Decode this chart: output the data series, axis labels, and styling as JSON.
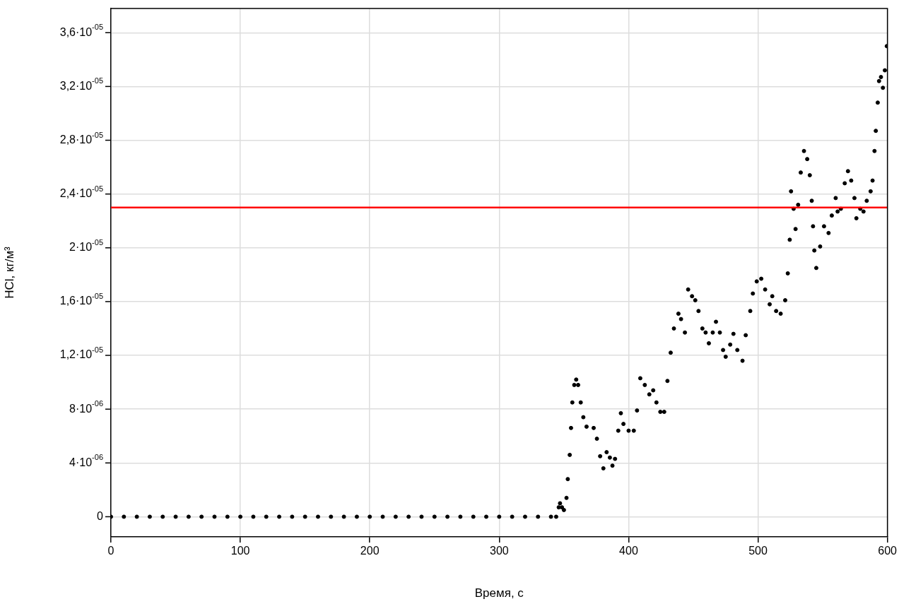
{
  "chart_data": {
    "type": "scatter",
    "xlabel": "Время, с",
    "ylabel": "HCl, кг/м³",
    "x": [
      0,
      10,
      20,
      30,
      40,
      50,
      60,
      70,
      80,
      90,
      100,
      110,
      120,
      130,
      140,
      150,
      160,
      170,
      180,
      190,
      200,
      210,
      220,
      230,
      240,
      250,
      260,
      270,
      280,
      290,
      300,
      310,
      320,
      330,
      340,
      344,
      346,
      347,
      348.5,
      350,
      352,
      353,
      354.5,
      355.5,
      356.5,
      358,
      359.5,
      361,
      363,
      365,
      367.5,
      373,
      375.5,
      378,
      380.5,
      383,
      385.5,
      387.5,
      389.5,
      392,
      394,
      396,
      400,
      404,
      406.5,
      409,
      412.5,
      416,
      419,
      421.5,
      424.5,
      427.5,
      430,
      432.5,
      435,
      438.5,
      440.5,
      443.5,
      446,
      449,
      451.5,
      454,
      457,
      459.5,
      462,
      465,
      467.5,
      470.5,
      473,
      475,
      478.5,
      481,
      484,
      488,
      490.5,
      494,
      496,
      499,
      502.5,
      505.5,
      509,
      511,
      514,
      517.5,
      521,
      523,
      524.5,
      525.5,
      527.5,
      529,
      531,
      533,
      535.5,
      538,
      540,
      541.5,
      542.5,
      543.5,
      545,
      548,
      551,
      554.5,
      557,
      560,
      561.5,
      564,
      567,
      569.5,
      572,
      574.5,
      576,
      579,
      581.5,
      584,
      587,
      588.5,
      590,
      591,
      592.5,
      593.5,
      595,
      596.5,
      598,
      599.5
    ],
    "series": [
      {
        "color": "#000000",
        "values": [
          0,
          0,
          0,
          0,
          0,
          0,
          0,
          0,
          0,
          0,
          0,
          0,
          0,
          0,
          0,
          0,
          0,
          0,
          0,
          0,
          0,
          0,
          0,
          0,
          0,
          0,
          0,
          0,
          0,
          0,
          0,
          0,
          0,
          0,
          0,
          0,
          7e-07,
          1e-06,
          7e-07,
          5e-07,
          1.4e-06,
          2.8e-06,
          4.6e-06,
          6.6e-06,
          8.5e-06,
          9.8e-06,
          1.02e-05,
          9.8e-06,
          8.5e-06,
          7.4e-06,
          6.7e-06,
          6.6e-06,
          5.8e-06,
          4.5e-06,
          3.6e-06,
          4.8e-06,
          4.4e-06,
          3.8e-06,
          4.3e-06,
          6.4e-06,
          7.7e-06,
          6.9e-06,
          6.4e-06,
          6.4e-06,
          7.9e-06,
          1.03e-05,
          9.8e-06,
          9.1e-06,
          9.4e-06,
          8.5e-06,
          7.8e-06,
          7.8e-06,
          1.01e-05,
          1.22e-05,
          1.4e-05,
          1.51e-05,
          1.47e-05,
          1.37e-05,
          1.69e-05,
          1.64e-05,
          1.61e-05,
          1.53e-05,
          1.4e-05,
          1.37e-05,
          1.29e-05,
          1.37e-05,
          1.45e-05,
          1.37e-05,
          1.24e-05,
          1.19e-05,
          1.28e-05,
          1.36e-05,
          1.24e-05,
          1.16e-05,
          1.35e-05,
          1.53e-05,
          1.66e-05,
          1.75e-05,
          1.77e-05,
          1.69e-05,
          1.58e-05,
          1.64e-05,
          1.53e-05,
          1.51e-05,
          1.61e-05,
          1.81e-05,
          2.06e-05,
          2.42e-05,
          2.29e-05,
          2.14e-05,
          2.32e-05,
          2.56e-05,
          2.72e-05,
          2.66e-05,
          2.54e-05,
          2.35e-05,
          2.16e-05,
          1.98e-05,
          1.85e-05,
          2.01e-05,
          2.16e-05,
          2.11e-05,
          2.24e-05,
          2.37e-05,
          2.27e-05,
          2.29e-05,
          2.48e-05,
          2.57e-05,
          2.5e-05,
          2.37e-05,
          2.22e-05,
          2.29e-05,
          2.27e-05,
          2.35e-05,
          2.42e-05,
          2.5e-05,
          2.72e-05,
          2.87e-05,
          3.08e-05,
          3.24e-05,
          3.27e-05,
          3.19e-05,
          3.32e-05,
          3.5e-05
        ]
      }
    ],
    "xlim": [
      0,
      600
    ],
    "xticks": [
      0,
      100,
      200,
      300,
      400,
      500,
      600
    ],
    "ylim": [
      -1.5e-06,
      3.78e-05
    ],
    "yticks": [
      {
        "value": 0,
        "label": "0"
      },
      {
        "value": 4e-06,
        "label": "4·10$^{-06}$"
      },
      {
        "value": 8e-06,
        "label": "8·10$^{-06}$"
      },
      {
        "value": 1.2e-05,
        "label": "1,2·10$^{-05}$"
      },
      {
        "value": 1.6e-05,
        "label": "1,6·10$^{-05}$"
      },
      {
        "value": 2e-05,
        "label": "2·10$^{-05}$"
      },
      {
        "value": 2.4e-05,
        "label": "2,4·10$^{-05}$"
      },
      {
        "value": 2.8e-05,
        "label": "2,8·10$^{-05}$"
      },
      {
        "value": 3.2e-05,
        "label": "3,2·10$^{-05}$"
      },
      {
        "value": 3.6e-05,
        "label": "3,6·10$^{-05}$"
      }
    ],
    "ref_lines": [
      {
        "axis": "y",
        "value": 2.3e-05,
        "color": "#ff0000"
      }
    ],
    "grid": true,
    "marker": "circle"
  }
}
